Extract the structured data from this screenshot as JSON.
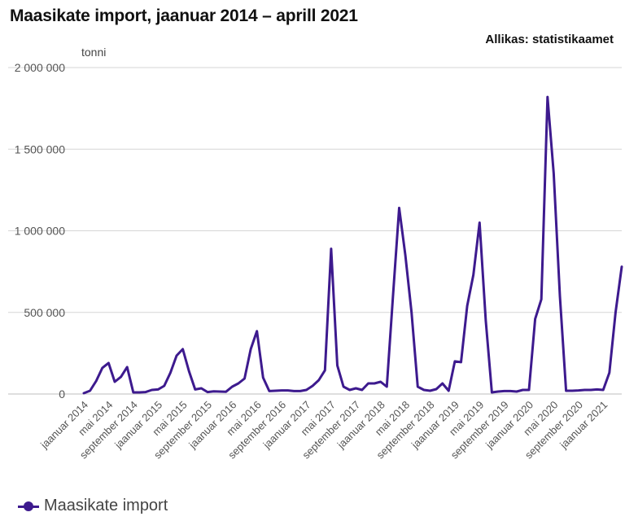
{
  "header": {
    "title": "Maasikate import, jaanuar 2014 – aprill 2021",
    "source": "Allikas: statistikaamet",
    "unit": "tonni"
  },
  "colors": {
    "series": "#3d1a8e",
    "grid": "#d6d6d6",
    "tick_text": "#555555"
  },
  "chart_data": {
    "type": "line",
    "x_start": "2014-01",
    "x_end": "2021-04",
    "x_tick_labels": [
      "jaanuar 2014",
      "mai 2014",
      "september 2014",
      "jaanuar 2015",
      "mai 2015",
      "september 2015",
      "jaanuar 2016",
      "mai 2016",
      "september 2016",
      "jaanuar 2017",
      "mai 2017",
      "september 2017",
      "jaanuar 2018",
      "mai 2018",
      "september 2018",
      "jaanuar 2019",
      "mai 2019",
      "september 2019",
      "jaanuar 2020",
      "mai 2020",
      "september 2020",
      "jaanuar 2021"
    ],
    "y_ticks": [
      0,
      500000,
      1000000,
      1500000,
      2000000
    ],
    "y_tick_labels": [
      "0",
      "500 000",
      "1 000 000",
      "1 500 000",
      "2 000 000"
    ],
    "ylim": [
      0,
      2000000
    ],
    "grid": true,
    "legend_position": "bottom-left",
    "series": [
      {
        "name": "Maasikate import",
        "values": [
          5000,
          20000,
          80000,
          160000,
          190000,
          75000,
          105000,
          165000,
          10000,
          10000,
          12000,
          25000,
          28000,
          50000,
          130000,
          235000,
          275000,
          140000,
          28000,
          35000,
          12000,
          16000,
          15000,
          14000,
          45000,
          65000,
          95000,
          275000,
          385000,
          100000,
          18000,
          20000,
          22000,
          22000,
          18000,
          18000,
          25000,
          50000,
          85000,
          145000,
          890000,
          175000,
          45000,
          25000,
          35000,
          25000,
          65000,
          65000,
          75000,
          45000,
          600000,
          1140000,
          850000,
          500000,
          45000,
          25000,
          20000,
          30000,
          65000,
          20000,
          200000,
          195000,
          540000,
          730000,
          1050000,
          450000,
          10000,
          15000,
          18000,
          18000,
          15000,
          25000,
          25000,
          460000,
          580000,
          1820000,
          1350000,
          600000,
          20000,
          20000,
          22000,
          25000,
          25000,
          28000,
          25000,
          130000,
          500000,
          780000
        ]
      }
    ]
  }
}
